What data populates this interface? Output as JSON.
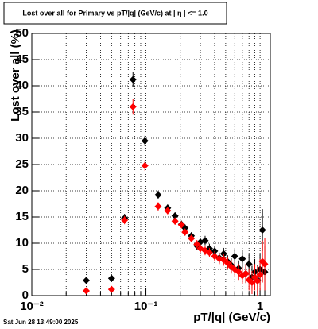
{
  "chart_data": {
    "type": "scatter",
    "title": "Lost over all for Primary vs pT/|q| (GeV/c) at | η | <= 1.0",
    "x_label": "pT/|q| (GeV/c)",
    "y_label": "Lost over all (%)",
    "footer": "Sat Jun 28 13:49:00 2025",
    "xscale": "log",
    "grid": true,
    "xlim": [
      0.01,
      1.23
    ],
    "ylim": [
      0,
      50
    ],
    "xticks": [
      {
        "value": 0.01,
        "label": "10⁻²"
      },
      {
        "value": 0.1,
        "label": "10⁻¹"
      },
      1
    ],
    "xminorticks": [
      0.02,
      0.03,
      0.04,
      0.05,
      0.06,
      0.07,
      0.08,
      0.09,
      0.2,
      0.3,
      0.4,
      0.5,
      0.6,
      0.7,
      0.8,
      0.9
    ],
    "yticks": [
      0,
      5,
      10,
      15,
      20,
      25,
      30,
      35,
      40,
      45,
      50
    ],
    "x": [
      0.03,
      0.05,
      0.065,
      0.077,
      0.098,
      0.128,
      0.155,
      0.18,
      0.205,
      0.22,
      0.25,
      0.28,
      0.3,
      0.33,
      0.36,
      0.4,
      0.44,
      0.48,
      0.52,
      0.56,
      0.6,
      0.65,
      0.7,
      0.75,
      0.8,
      0.85,
      0.9,
      0.95,
      1.0,
      1.05,
      1.1
    ],
    "series": [
      {
        "color": "#000000",
        "values": [
          2.9,
          3.3,
          14.8,
          41.2,
          29.5,
          19.2,
          16.7,
          15.2,
          13.6,
          12.9,
          11.4,
          9.5,
          10.2,
          10.5,
          9.0,
          8.5,
          7.2,
          8.0,
          6.5,
          5.8,
          7.5,
          5.2,
          7.0,
          4.2,
          6.0,
          3.5,
          4.5,
          3.0,
          5.0,
          12.5,
          4.5
        ],
        "errors": [
          0.3,
          0.4,
          0.8,
          1.5,
          1.0,
          0.8,
          0.7,
          0.7,
          0.7,
          0.7,
          0.7,
          0.8,
          0.8,
          0.9,
          0.9,
          1.0,
          1.0,
          1.1,
          1.2,
          1.3,
          1.4,
          1.5,
          1.6,
          1.8,
          2,
          2.2,
          2.5,
          2.8,
          3,
          4,
          5
        ]
      },
      {
        "color": "#ff0000",
        "values": [
          0.9,
          1.2,
          14.4,
          36,
          24.8,
          17,
          16.2,
          14.2,
          13.5,
          12.1,
          10.9,
          9.8,
          9.0,
          8.6,
          8.2,
          7.5,
          7.0,
          6.8,
          6.2,
          5.5,
          5.0,
          4.5,
          3.8,
          4.2,
          3.0,
          2.5,
          3.5,
          2.8,
          4.0,
          6.5,
          6.0
        ],
        "errors": [
          0.3,
          0.4,
          0.8,
          1.5,
          1.0,
          0.8,
          0.7,
          0.7,
          0.7,
          0.7,
          0.7,
          0.8,
          0.8,
          0.9,
          0.9,
          1.0,
          1.0,
          1.1,
          1.2,
          1.3,
          1.4,
          1.5,
          1.6,
          1.8,
          2,
          2.2,
          2.5,
          2.8,
          3,
          4,
          5
        ]
      }
    ]
  }
}
